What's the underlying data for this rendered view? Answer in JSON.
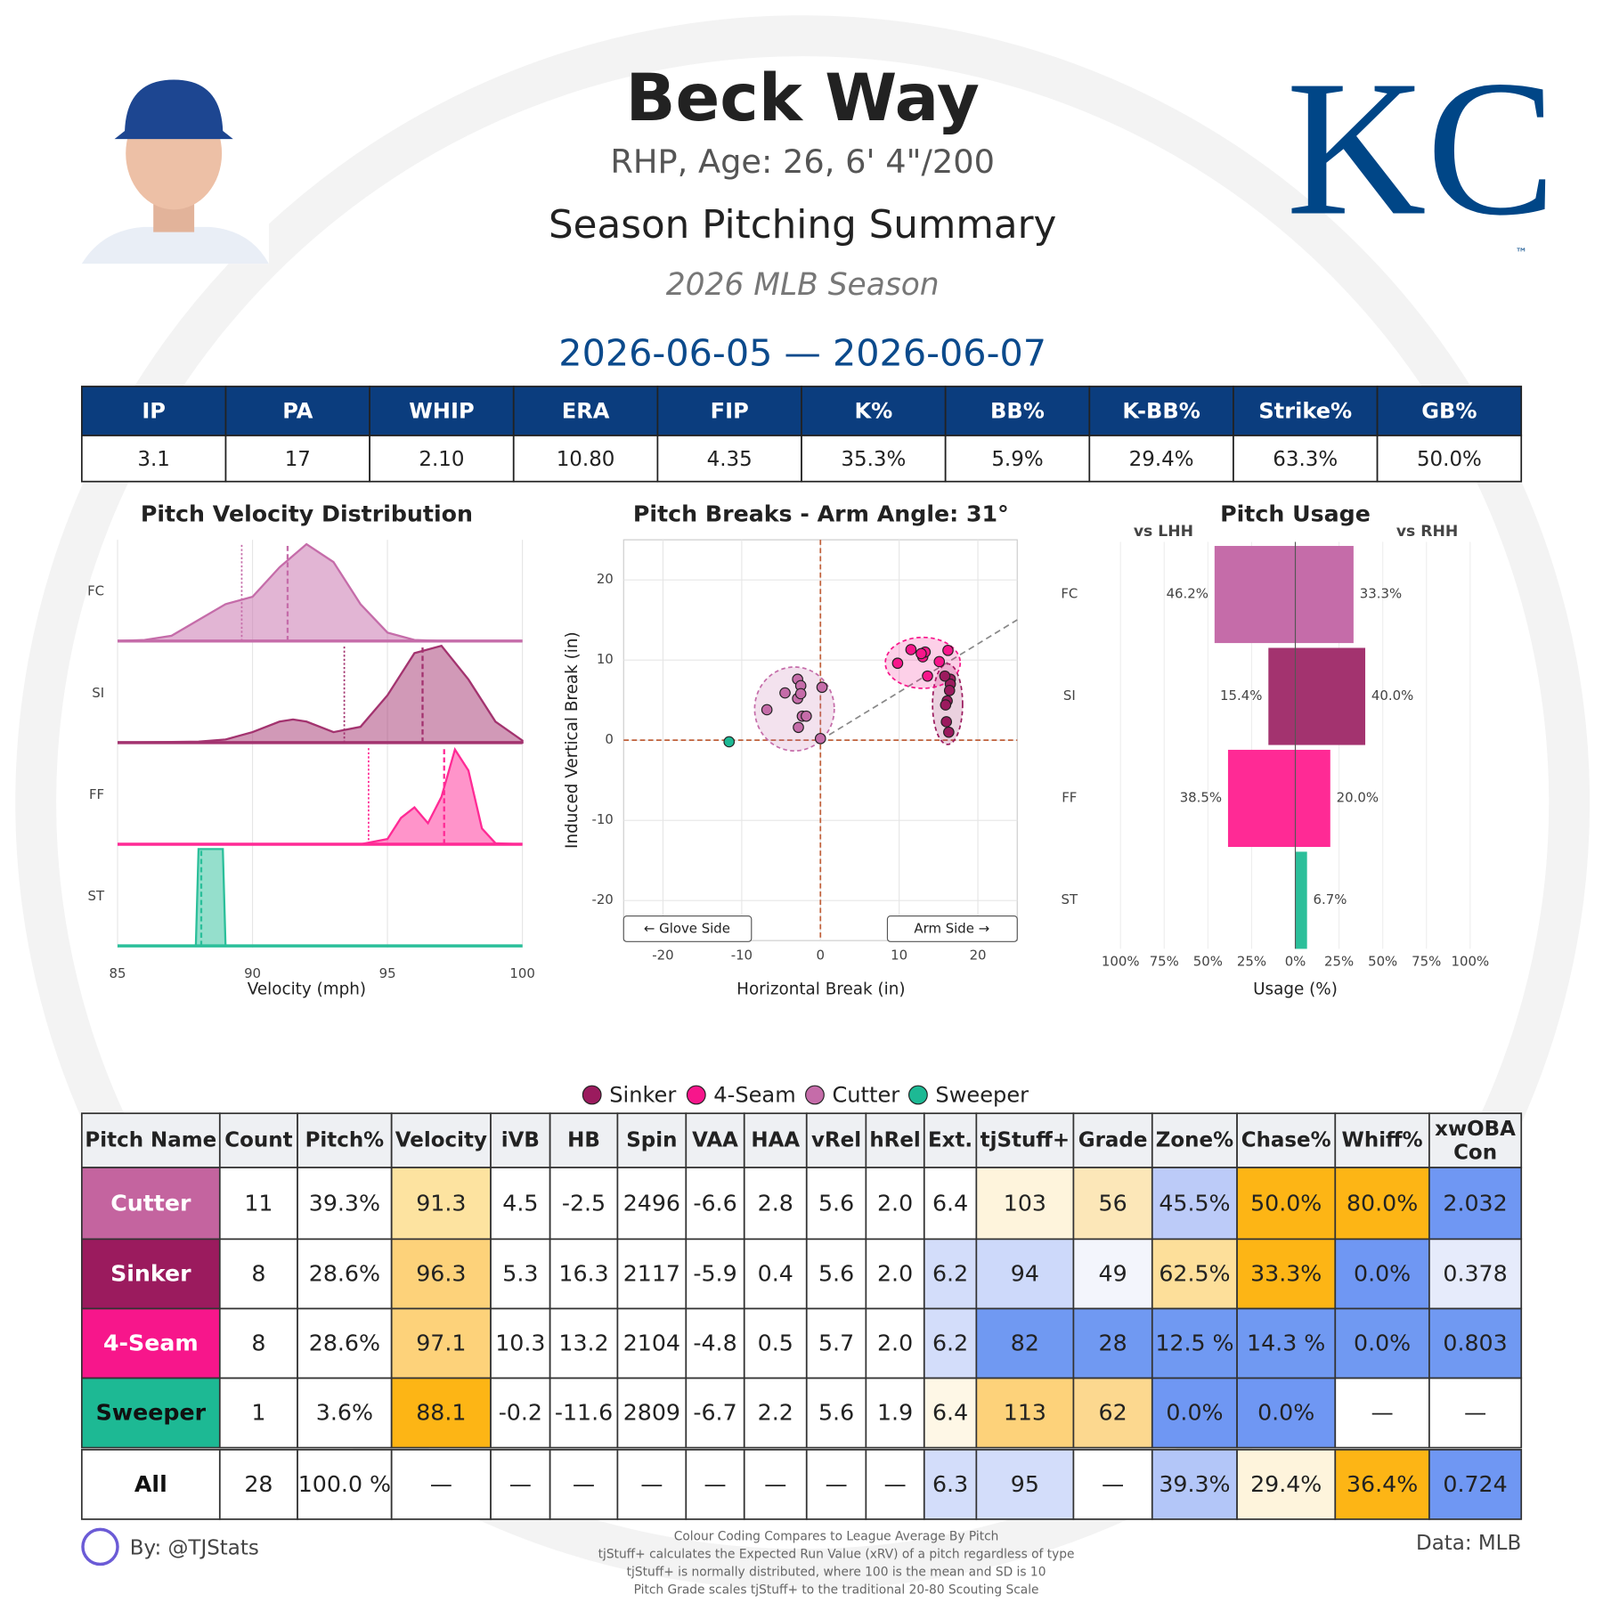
{
  "header": {
    "name": "Beck Way",
    "bio": "RHP, Age: 26, 6' 4\"/200",
    "title": "Season Pitching Summary",
    "season": "2026 MLB Season",
    "dates": "2026-06-05 — 2026-06-07",
    "logo": "KC",
    "logo_mark": "™"
  },
  "stats": {
    "headers": [
      "IP",
      "PA",
      "WHIP",
      "ERA",
      "FIP",
      "K%",
      "BB%",
      "K-BB%",
      "Strike%",
      "GB%"
    ],
    "values": [
      "3.1",
      "17",
      "2.10",
      "10.80",
      "4.35",
      "35.3%",
      "5.9%",
      "29.4%",
      "63.3%",
      "50.0%"
    ]
  },
  "velocity": {
    "title": "Pitch Velocity Distribution",
    "xlabel": "Velocity (mph)",
    "xlim": [
      85,
      100
    ],
    "xticks": [
      85,
      90,
      95,
      100
    ],
    "grid": true,
    "rows": [
      {
        "name": "FC",
        "color": "#c56ca9",
        "mean": 91.3,
        "league_mean": 89.6,
        "x": [
          85,
          86,
          87,
          88,
          89,
          90,
          91,
          92,
          93,
          94,
          95,
          96,
          97,
          100
        ],
        "density": [
          0,
          0.01,
          0.05,
          0.2,
          0.35,
          0.42,
          0.7,
          0.92,
          0.75,
          0.35,
          0.08,
          0.01,
          0,
          0
        ]
      },
      {
        "name": "SI",
        "color": "#a3336f",
        "mean": 96.3,
        "league_mean": 93.4,
        "x": [
          85,
          88,
          89,
          90,
          91,
          91.5,
          92,
          93,
          94,
          95,
          96,
          97,
          98,
          99,
          100
        ],
        "density": [
          0,
          0.01,
          0.03,
          0.1,
          0.2,
          0.22,
          0.2,
          0.1,
          0.15,
          0.45,
          0.85,
          0.92,
          0.6,
          0.2,
          0.02
        ]
      },
      {
        "name": "FF",
        "color": "#ff2a95",
        "mean": 97.1,
        "league_mean": 94.3,
        "x": [
          85,
          94,
          95,
          95.5,
          96,
          96.5,
          97,
          97.5,
          98,
          98.5,
          99,
          100
        ],
        "density": [
          0,
          0,
          0.05,
          0.25,
          0.35,
          0.2,
          0.45,
          0.9,
          0.7,
          0.15,
          0.01,
          0
        ]
      },
      {
        "name": "ST",
        "color": "#2bbf9a",
        "mean": 88.1,
        "x": [
          85,
          87.9,
          88.0,
          88.9,
          89.0,
          100
        ],
        "density": [
          0,
          0,
          0.92,
          0.92,
          0,
          0
        ]
      }
    ]
  },
  "breaks": {
    "type": "scatter",
    "title": "Pitch Breaks - Arm Angle: 31°",
    "arm_angle": 31,
    "xlabel": "Horizontal Break (in)",
    "ylabel": "Induced Vertical Break (in)",
    "xlim": [
      -25,
      25
    ],
    "ylim": [
      -25,
      25
    ],
    "xticks": [
      -20,
      -10,
      0,
      10,
      20
    ],
    "yticks": [
      -20,
      -10,
      0,
      10,
      20
    ],
    "grid": true,
    "glove_label": "← Glove Side",
    "arm_label": "Arm Side →",
    "series": [
      {
        "name": "Cutter",
        "color": "#c56ca9",
        "x": [
          -6.8,
          -4.5,
          -2.9,
          -2.9,
          -2.5,
          -2.3,
          -1.8,
          -2.8,
          0.2,
          0,
          -2.5
        ],
        "y": [
          3.8,
          5.9,
          7.6,
          5.2,
          6.8,
          3.0,
          3.0,
          1.6,
          6.6,
          0.2,
          5.8
        ]
      },
      {
        "name": "Sinker",
        "color": "#9b1b5e",
        "x": [
          16.5,
          16.5,
          16.4,
          16.1,
          15.9,
          16.0,
          16.3,
          15.8
        ],
        "y": [
          7.6,
          7.0,
          6.2,
          4.9,
          4.4,
          2.3,
          1.0,
          8.0
        ]
      },
      {
        "name": "4-Seam",
        "color": "#f7168b",
        "x": [
          9.8,
          11.5,
          13.0,
          13.3,
          13.6,
          15.1,
          16.2,
          12.8
        ],
        "y": [
          9.6,
          11.3,
          10.4,
          11.0,
          8.0,
          9.8,
          11.2,
          10.8
        ]
      },
      {
        "name": "Sweeper",
        "color": "#1db994",
        "x": [
          -11.6
        ],
        "y": [
          -0.2
        ]
      }
    ]
  },
  "usage": {
    "type": "bar",
    "title": "Pitch Usage",
    "left_label": "vs LHH",
    "right_label": "vs RHH",
    "xlabel": "Usage (%)",
    "categories": [
      "FC",
      "SI",
      "FF",
      "ST"
    ],
    "colors": [
      "#c56ca9",
      "#a3336f",
      "#ff2a95",
      "#2bbf9a"
    ],
    "lhh": [
      46.2,
      15.4,
      38.5,
      null
    ],
    "lhh_value_labels": [
      "46.2%",
      "15.4%",
      "38.5%",
      null
    ],
    "rhh": [
      33.3,
      40.0,
      20.0,
      6.7
    ],
    "rhh_value_labels": [
      "33.3%",
      "40.0%",
      "20.0%",
      "6.7%"
    ],
    "lhh_ticks": [
      {
        "value": 100,
        "label": "100%"
      },
      {
        "value": 75,
        "label": "75%"
      },
      {
        "value": 50,
        "label": "50%"
      },
      {
        "value": 25,
        "label": "25%"
      },
      {
        "value": 0,
        "label": "0%"
      }
    ],
    "rhh_ticks": [
      {
        "value": 25,
        "label": "25%"
      },
      {
        "value": 50,
        "label": "50%"
      },
      {
        "value": 75,
        "label": "75%"
      },
      {
        "value": 100,
        "label": "100%"
      }
    ]
  },
  "legend": {
    "items": [
      {
        "name": "Sinker",
        "color": "#9b1b5e"
      },
      {
        "name": "4-Seam",
        "color": "#f7168b"
      },
      {
        "name": "Cutter",
        "color": "#c56ca9"
      },
      {
        "name": "Sweeper",
        "color": "#1db994"
      }
    ]
  },
  "table": {
    "header": [
      "Pitch Name",
      "Count",
      "Pitch%",
      "Velocity",
      "iVB",
      "HB",
      "Spin",
      "VAA",
      "HAA",
      "vRel",
      "hRel",
      "Ext.",
      "tjStuff+",
      "Grade",
      "Zone%",
      "Chase%",
      "Whiff%",
      [
        "xwOBA",
        "Con"
      ]
    ],
    "rows": [
      [
        "Cutter",
        "11",
        "39.3%",
        "91.3",
        "4.5",
        "-2.5",
        "2496",
        "-6.6",
        "2.8",
        "5.6",
        "2.0",
        "6.4",
        "103",
        "56",
        "45.5%",
        "50.0%",
        "80.0%",
        "2.032"
      ],
      [
        "Sinker",
        "8",
        "28.6%",
        "96.3",
        "5.3",
        "16.3",
        "2117",
        "-5.9",
        "0.4",
        "5.6",
        "2.0",
        "6.2",
        "94",
        "49",
        "62.5%",
        "33.3%",
        "0.0%",
        "0.378"
      ],
      [
        "4-Seam",
        "8",
        "28.6%",
        "97.1",
        "10.3",
        "13.2",
        "2104",
        "-4.8",
        "0.5",
        "5.7",
        "2.0",
        "6.2",
        "82",
        "28",
        "12.5 %",
        "14.3 %",
        "0.0%",
        "0.803"
      ],
      [
        "Sweeper",
        "1",
        "3.6%",
        "88.1",
        "-0.2",
        "-11.6",
        "2809",
        "-6.7",
        "2.2",
        "5.6",
        "1.9",
        "6.4",
        "113",
        "62",
        "0.0%",
        "0.0%",
        "—",
        "—"
      ],
      [
        "All",
        "28",
        "100.0 %",
        "—",
        "—",
        "—",
        "—",
        "—",
        "—",
        "—",
        "—",
        "6.3",
        "95",
        "—",
        "39.3%",
        "29.4%",
        "36.4%",
        "0.724"
      ]
    ],
    "name_text_colors": [
      "#ffffff",
      "#ffffff",
      "#ffffff",
      "#111111",
      "#111111"
    ],
    "cell_colors": [
      [
        "#c4649f",
        null,
        null,
        "#fde3a0",
        null,
        null,
        null,
        null,
        null,
        null,
        null,
        null,
        "#fef4dc",
        "#fce7b8",
        "#bccbf8",
        "#fdb515",
        "#fdb515",
        "#6f97f3"
      ],
      [
        "#9b1b5e",
        null,
        null,
        "#fdd27a",
        null,
        null,
        null,
        null,
        null,
        null,
        null,
        "#d3ddfa",
        "#cdd9fa",
        "#f3f5fc",
        "#fddf9a",
        "#fdb515",
        "#6f97f3",
        "#e6ebfb"
      ],
      [
        "#f7168b",
        null,
        null,
        "#fdd27a",
        null,
        null,
        null,
        null,
        null,
        null,
        null,
        "#d3ddfa",
        "#7099f2",
        "#7099f2",
        "#7099f2",
        "#7099f2",
        "#7099f2",
        "#7099f2"
      ],
      [
        "#1db994",
        null,
        null,
        "#fdb515",
        null,
        null,
        null,
        null,
        null,
        null,
        null,
        "#fef7e6",
        "#fdd27a",
        "#fcd88f",
        "#6f97f3",
        "#6f97f3",
        null,
        null
      ],
      [
        null,
        null,
        null,
        null,
        null,
        null,
        null,
        null,
        null,
        null,
        null,
        "#d3ddfa",
        "#d3ddfa",
        null,
        "#b3c6f8",
        "#fef4dc",
        "#fdb515",
        "#6f97f3"
      ]
    ]
  },
  "footer": {
    "by": "By: @TJStats",
    "source": "Data: MLB",
    "notes": [
      "Colour Coding Compares to League Average By Pitch",
      "tjStuff+ calculates the Expected Run Value (xRV) of a pitch regardless of type",
      "tjStuff+ is normally distributed, where 100 is the mean and SD is 10",
      "Pitch Grade scales tjStuff+ to the traditional 20-80 Scouting Scale"
    ]
  }
}
